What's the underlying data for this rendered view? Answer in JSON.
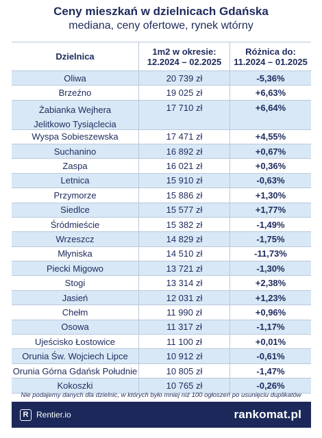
{
  "header": {
    "title": "Ceny mieszkań w dzielnicach Gdańska",
    "subtitle": "mediana, ceny ofertowe, rynek wtórny"
  },
  "table": {
    "columns": {
      "district": "Dzielnica",
      "price_line1": "1m2 w okresie:",
      "price_line2": "12.2024 – 02.2025",
      "diff_line1": "Różnica do:",
      "diff_line2": "11.2024 – 01.2025"
    },
    "rows": [
      {
        "district": "Oliwa",
        "price": "20 739 zł",
        "diff": "-5,36%"
      },
      {
        "district": "Brzeźno",
        "price": "19 025 zł",
        "diff": "+6,63%"
      },
      {
        "district": "Żabianka Wejhera",
        "district_line2": "Jelitkowo Tysiąclecia",
        "price": "17 710 zł",
        "diff": "+6,64%"
      },
      {
        "district": "Wyspa Sobieszewska",
        "price": "17 471 zł",
        "diff": "+4,55%"
      },
      {
        "district": "Suchanino",
        "price": "16 892 zł",
        "diff": "+0,67%"
      },
      {
        "district": "Zaspa",
        "price": "16 021 zł",
        "diff": "+0,36%"
      },
      {
        "district": "Letnica",
        "price": "15 910 zł",
        "diff": "-0,63%"
      },
      {
        "district": "Przymorze",
        "price": "15 886 zł",
        "diff": "+1,30%"
      },
      {
        "district": "Siedlce",
        "price": "15 577 zł",
        "diff": "+1,77%"
      },
      {
        "district": "Śródmieście",
        "price": "15 382 zł",
        "diff": "-1,49%"
      },
      {
        "district": "Wrzeszcz",
        "price": "14 829 zł",
        "diff": "-1,75%"
      },
      {
        "district": "Młyniska",
        "price": "14 510 zł",
        "diff": "-11,73%"
      },
      {
        "district": "Piecki Migowo",
        "price": "13 721 zł",
        "diff": "-1,30%"
      },
      {
        "district": "Stogi",
        "price": "13 314 zł",
        "diff": "+2,38%"
      },
      {
        "district": "Jasień",
        "price": "12 031 zł",
        "diff": "+1,23%"
      },
      {
        "district": "Chełm",
        "price": "11 990 zł",
        "diff": "+0,96%"
      },
      {
        "district": "Osowa",
        "price": "11 317 zł",
        "diff": "-1,17%"
      },
      {
        "district": "Ujeścisko Łostowice",
        "price": "11 100 zł",
        "diff": "+0,01%"
      },
      {
        "district": "Orunia Św. Wojciech Lipce",
        "price": "10 912 zł",
        "diff": "-0,61%"
      },
      {
        "district": "Orunia Górna Gdańsk Południe",
        "price": "10 805 zł",
        "diff": "-1,47%"
      },
      {
        "district": "Kokoszki",
        "price": "10 765 zł",
        "diff": "-0,26%"
      }
    ]
  },
  "footnote": "Nie podajemy danych dla dzielnic, w których było mniej niż 100 ogłoszeń po usunięciu duplikatów",
  "footer": {
    "left_icon": "R",
    "left_label": "Rentier.io",
    "right_label": "rankomat.pl"
  },
  "colors": {
    "navy": "#1d2a5c",
    "stripe": "#d8e8f6",
    "footer_bg": "#1b2859"
  }
}
